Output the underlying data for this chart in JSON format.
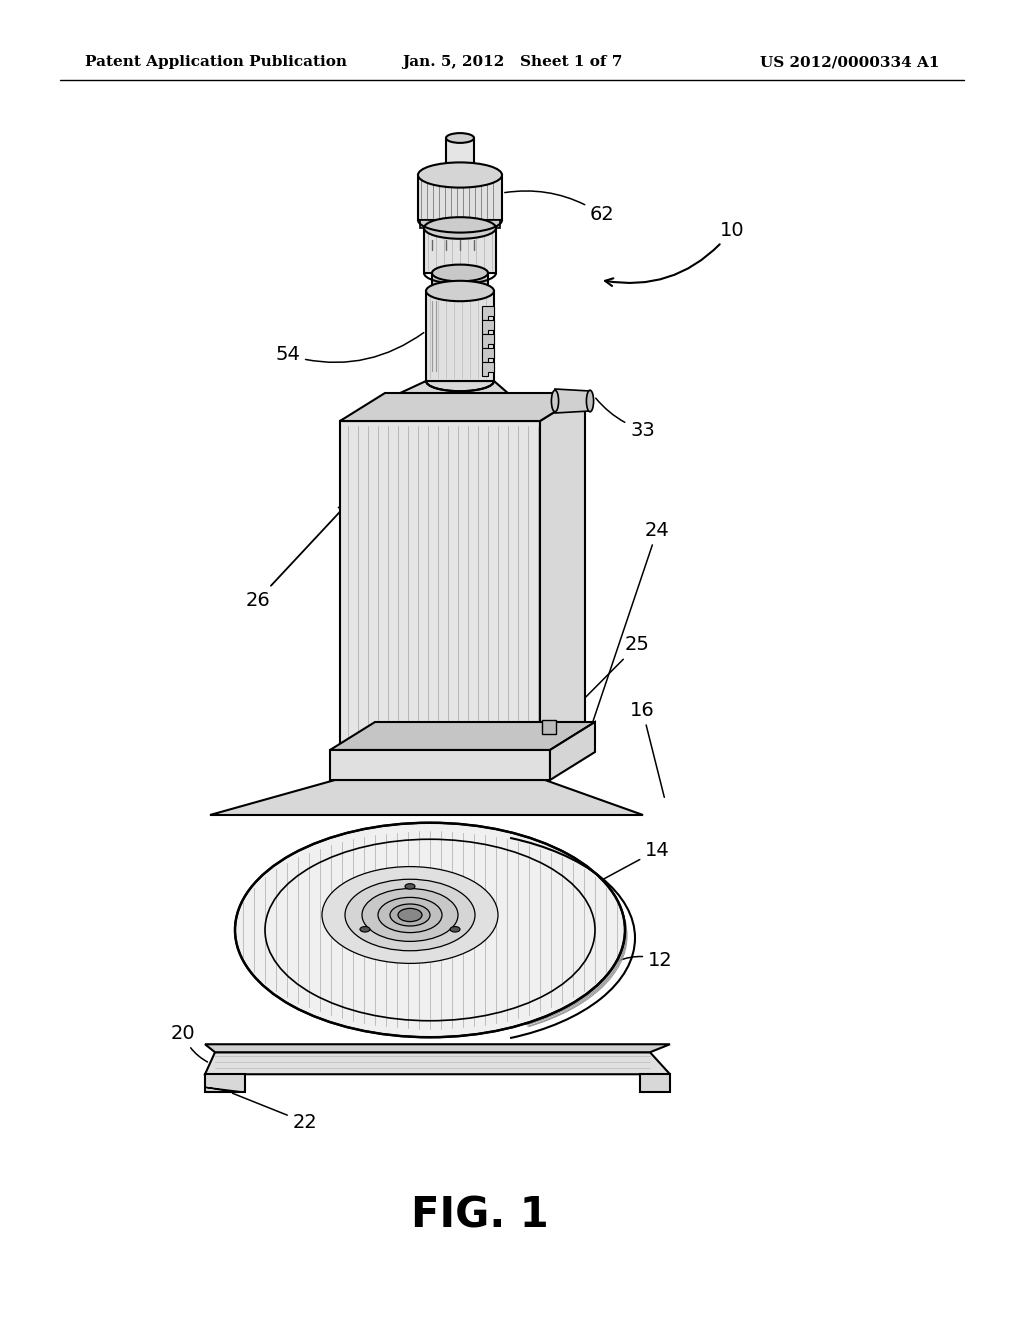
{
  "background_color": "#ffffff",
  "header_left": "Patent Application Publication",
  "header_center": "Jan. 5, 2012   Sheet 1 of 7",
  "header_right": "US 2012/0000334 A1",
  "figure_label": "FIG. 1",
  "line_color": "#000000",
  "light_gray": "#e8e8e8",
  "mid_gray": "#cccccc",
  "dark_gray": "#999999",
  "hatch_color": "#aaaaaa"
}
